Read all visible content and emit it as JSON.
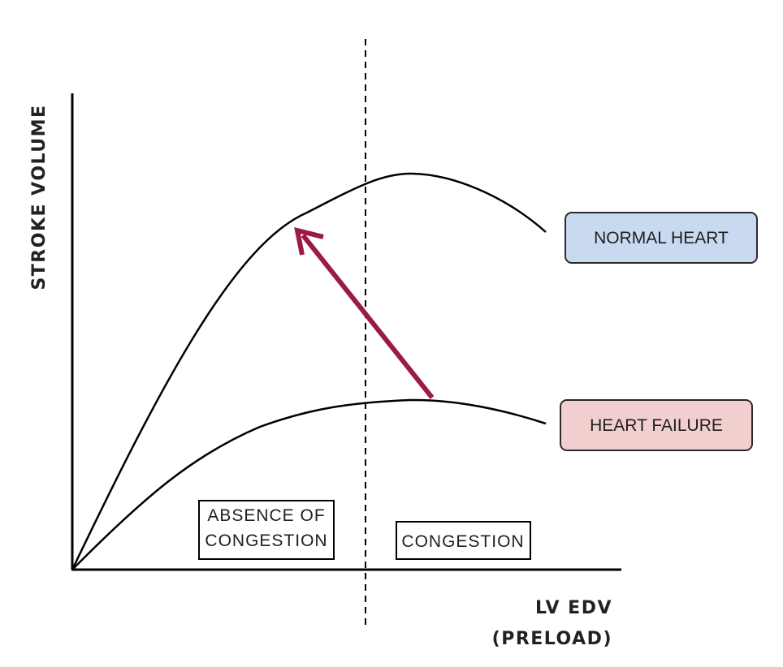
{
  "axes": {
    "y_label": "STROKE VOLUME",
    "x_label_line1": "LV EDV",
    "x_label_line2": "(PRELOAD)"
  },
  "curves": {
    "normal": {
      "label": "NORMAL HEART",
      "color": "#000000",
      "tag_fill": "#c9d9f0",
      "tag_stroke": "#2b2b2b"
    },
    "failure": {
      "label": "HEART FAILURE",
      "color": "#000000",
      "tag_fill": "#f2cfcf",
      "tag_stroke": "#2b2b2b"
    }
  },
  "regions": {
    "left_line1": "ABSENCE OF",
    "left_line2": "CONGESTION",
    "right": "CONGESTION"
  },
  "arrow": {
    "color": "#9b1b45",
    "from": "heart-failure",
    "to": "normal-heart"
  }
}
